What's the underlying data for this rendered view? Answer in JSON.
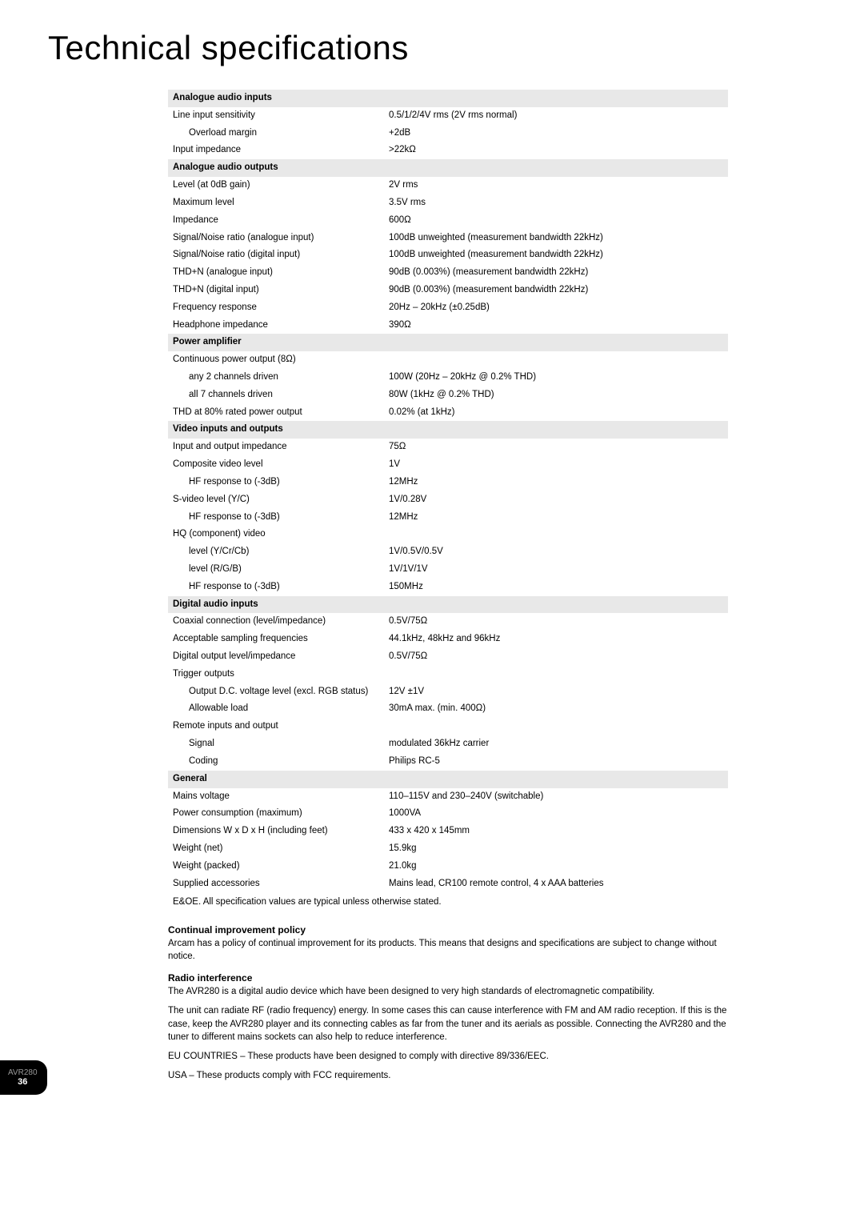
{
  "title": "Technical specifications",
  "sections": [
    {
      "heading": "Analogue audio inputs",
      "rows": [
        {
          "label": "Line input sensitivity",
          "value": "0.5/1/2/4V rms (2V rms normal)",
          "indent": 0
        },
        {
          "label": "Overload margin",
          "value": "+2dB",
          "indent": 1
        },
        {
          "label": "Input impedance",
          "value": ">22kΩ",
          "indent": 0
        }
      ]
    },
    {
      "heading": "Analogue audio outputs",
      "rows": [
        {
          "label": "Level (at 0dB gain)",
          "value": "2V rms",
          "indent": 0
        },
        {
          "label": "Maximum level",
          "value": "3.5V rms",
          "indent": 0
        },
        {
          "label": "Impedance",
          "value": "600Ω",
          "indent": 0
        },
        {
          "label": "Signal/Noise ratio (analogue input)",
          "value": "100dB unweighted (measurement bandwidth 22kHz)",
          "indent": 0
        },
        {
          "label": "Signal/Noise ratio (digital input)",
          "value": "100dB unweighted (measurement bandwidth 22kHz)",
          "indent": 0
        },
        {
          "label": "THD+N (analogue input)",
          "value": "90dB (0.003%) (measurement bandwidth 22kHz)",
          "indent": 0
        },
        {
          "label": "THD+N (digital input)",
          "value": "90dB (0.003%) (measurement bandwidth 22kHz)",
          "indent": 0
        },
        {
          "label": "Frequency response",
          "value": "20Hz – 20kHz (±0.25dB)",
          "indent": 0
        },
        {
          "label": "Headphone impedance",
          "value": "390Ω",
          "indent": 0
        }
      ]
    },
    {
      "heading": "Power amplifier",
      "rows": [
        {
          "label": "Continuous power output (8Ω)",
          "value": "",
          "indent": 0
        },
        {
          "label": "any 2 channels driven",
          "value": "100W (20Hz – 20kHz @ 0.2% THD)",
          "indent": 1
        },
        {
          "label": "all 7 channels driven",
          "value": "80W (1kHz @ 0.2% THD)",
          "indent": 1
        },
        {
          "label": "THD at 80% rated power output",
          "value": "0.02% (at 1kHz)",
          "indent": 0
        }
      ]
    },
    {
      "heading": "Video inputs and outputs",
      "rows": [
        {
          "label": "Input and output impedance",
          "value": "75Ω",
          "indent": 0
        },
        {
          "label": "Composite video level",
          "value": "1V",
          "indent": 0
        },
        {
          "label": "HF response to (-3dB)",
          "value": "12MHz",
          "indent": 1
        },
        {
          "label": "S-video level (Y/C)",
          "value": "1V/0.28V",
          "indent": 0
        },
        {
          "label": "HF response to (-3dB)",
          "value": "12MHz",
          "indent": 1
        },
        {
          "label": "HQ (component) video",
          "value": "",
          "indent": 0
        },
        {
          "label": "level (Y/Cr/Cb)",
          "value": "1V/0.5V/0.5V",
          "indent": 1
        },
        {
          "label": "level (R/G/B)",
          "value": "1V/1V/1V",
          "indent": 1
        },
        {
          "label": "HF response to (-3dB)",
          "value": "150MHz",
          "indent": 1
        }
      ]
    },
    {
      "heading": "Digital audio inputs",
      "rows": [
        {
          "label": "Coaxial connection (level/impedance)",
          "value": "0.5V/75Ω",
          "indent": 0
        },
        {
          "label": "Acceptable sampling frequencies",
          "value": "44.1kHz, 48kHz and 96kHz",
          "indent": 0
        },
        {
          "label": "Digital output level/impedance",
          "value": "0.5V/75Ω",
          "indent": 0
        },
        {
          "label": "Trigger outputs",
          "value": "",
          "indent": 0
        },
        {
          "label": "Output D.C. voltage level (excl. RGB status)",
          "value": "12V ±1V",
          "indent": 1
        },
        {
          "label": "Allowable load",
          "value": "30mA max. (min. 400Ω)",
          "indent": 1
        },
        {
          "label": "Remote inputs and output",
          "value": "",
          "indent": 0
        },
        {
          "label": "Signal",
          "value": "modulated 36kHz carrier",
          "indent": 1
        },
        {
          "label": "Coding",
          "value": "Philips RC-5",
          "indent": 1
        }
      ]
    },
    {
      "heading": "General",
      "rows": [
        {
          "label": "Mains voltage",
          "value": "110–115V and 230–240V (switchable)",
          "indent": 0
        },
        {
          "label": "Power consumption (maximum)",
          "value": "1000VA",
          "indent": 0
        },
        {
          "label": "Dimensions W x D x H (including feet)",
          "value": "433 x 420 x 145mm",
          "indent": 0
        },
        {
          "label": "Weight (net)",
          "value": "15.9kg",
          "indent": 0
        },
        {
          "label": "Weight (packed)",
          "value": "21.0kg",
          "indent": 0
        },
        {
          "label": "Supplied accessories",
          "value": "Mains lead, CR100 remote control, 4 x AAA batteries",
          "indent": 0
        }
      ]
    }
  ],
  "footnote": "E&OE. All specification values are typical unless otherwise stated.",
  "notes": [
    {
      "heading": "Continual improvement policy",
      "paragraphs": [
        "Arcam has a policy of continual improvement for its products. This means that designs and specifications are subject to change without notice."
      ]
    },
    {
      "heading": "Radio interference",
      "paragraphs": [
        "The AVR280 is a digital audio device which have been designed to very high standards of electromagnetic compatibility.",
        "The unit can radiate RF (radio frequency) energy. In some cases this can cause interference with FM and AM radio reception. If this is the case, keep the AVR280 player and its connecting cables as far from the tuner and its aerials as possible. Connecting the AVR280 and the tuner to different mains sockets can also help to reduce interference.",
        "EU COUNTRIES – These products have been designed to comply with directive 89/336/EEC.",
        "USA – These products comply with FCC requirements."
      ]
    }
  ],
  "page_marker": {
    "model": "AVR280",
    "page": "36"
  },
  "colors": {
    "section_bg": "#e8e8e8",
    "text": "#000000",
    "page_marker_bg": "#000000"
  }
}
